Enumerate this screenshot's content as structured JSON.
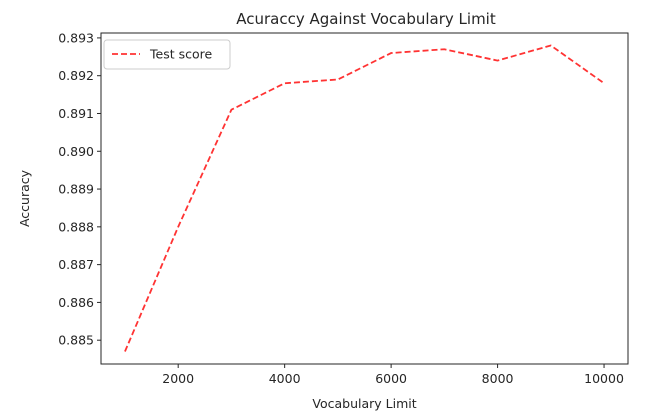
{
  "chart_data": {
    "type": "line",
    "title": "Acuraccy Against Vocabulary Limit",
    "xlabel": "Vocabulary Limit",
    "ylabel": "Accuracy",
    "xlim": [
      550,
      10450
    ],
    "ylim": [
      0.88437,
      0.89313
    ],
    "xticks": [
      2000,
      4000,
      6000,
      8000,
      10000
    ],
    "yticks": [
      0.885,
      0.886,
      0.887,
      0.888,
      0.889,
      0.89,
      0.891,
      0.892,
      0.893
    ],
    "xtick_labels": [
      "2000",
      "4000",
      "6000",
      "8000",
      "10000"
    ],
    "ytick_labels": [
      "0.885",
      "0.886",
      "0.887",
      "0.888",
      "0.889",
      "0.890",
      "0.891",
      "0.892",
      "0.893"
    ],
    "grid": false,
    "legend_position": "top-left",
    "series": [
      {
        "name": "Test score",
        "color": "#ff3333",
        "style": "dashed",
        "x": [
          1000,
          2000,
          3000,
          4000,
          5000,
          6000,
          7000,
          8000,
          9000,
          10000
        ],
        "y": [
          0.8847,
          0.888,
          0.8911,
          0.8918,
          0.8919,
          0.8926,
          0.8927,
          0.8924,
          0.8928,
          0.8918
        ]
      }
    ]
  }
}
